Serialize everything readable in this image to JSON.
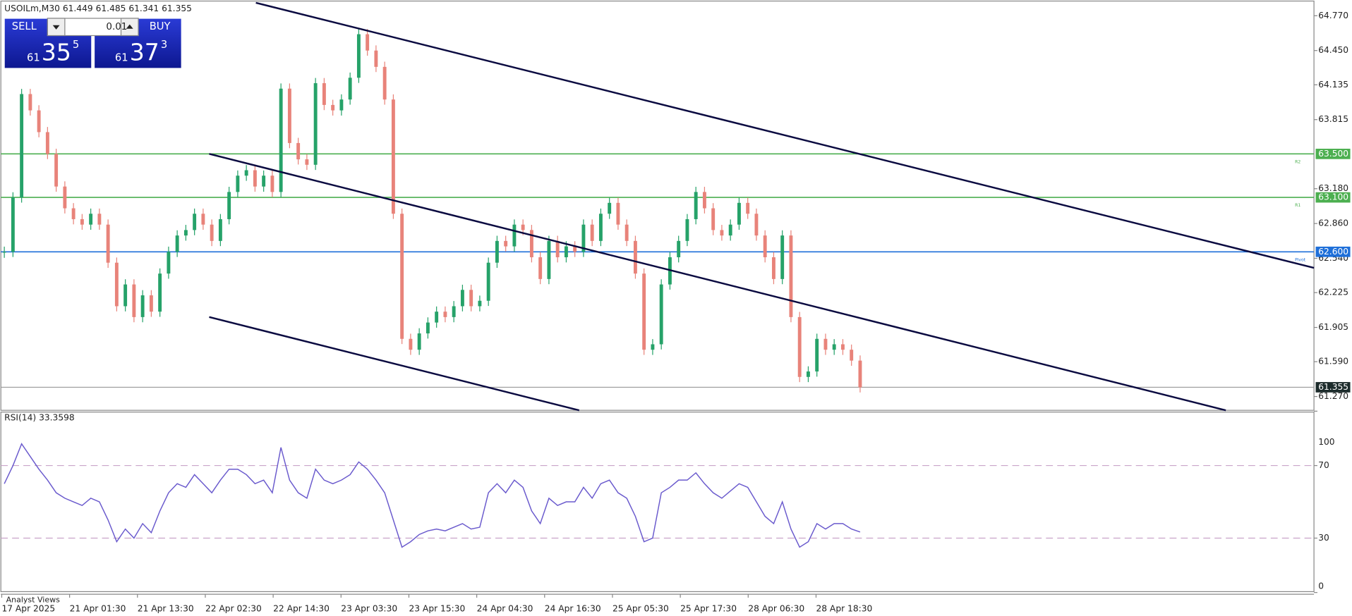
{
  "header": {
    "symbol_line": "USOILm,M30  61.449 61.485 61.341 61.355"
  },
  "trade_panel": {
    "sell": {
      "label": "SELL",
      "price_small": "61",
      "price_big": "35",
      "price_sup": "5"
    },
    "lot": "0.01",
    "buy": {
      "label": "BUY",
      "price_small": "61",
      "price_big": "37",
      "price_sup": "3"
    }
  },
  "price_axis": {
    "ticks": [
      {
        "value": 64.77,
        "label": "64.770"
      },
      {
        "value": 64.45,
        "label": "64.450"
      },
      {
        "value": 64.135,
        "label": "64.135"
      },
      {
        "value": 63.815,
        "label": "63.815"
      },
      {
        "value": 63.18,
        "label": "63.180"
      },
      {
        "value": 62.86,
        "label": "62.860"
      },
      {
        "value": 62.54,
        "label": "62.540"
      },
      {
        "value": 62.225,
        "label": "62.225"
      },
      {
        "value": 61.905,
        "label": "61.905"
      },
      {
        "value": 61.59,
        "label": "61.590"
      },
      {
        "value": 61.27,
        "label": "61.270"
      }
    ]
  },
  "levels": [
    {
      "value": 63.5,
      "label": "63.500",
      "tag": "R2",
      "color": "#4caf50"
    },
    {
      "value": 63.1,
      "label": "63.100",
      "tag": "R1",
      "color": "#4caf50"
    },
    {
      "value": 62.6,
      "label": "62.600",
      "tag": "Pivot",
      "color": "#1e6fd9"
    }
  ],
  "current_price": {
    "value": 61.355,
    "label": "61.355"
  },
  "price_series": {
    "up_color": "#26a269",
    "down_color": "#e8837a",
    "closes": [
      62.6,
      63.1,
      64.05,
      63.9,
      63.7,
      63.5,
      63.2,
      63.0,
      62.9,
      62.85,
      62.95,
      62.85,
      62.5,
      62.1,
      62.3,
      62.0,
      62.2,
      62.05,
      62.4,
      62.6,
      62.75,
      62.8,
      62.95,
      62.85,
      62.7,
      62.9,
      63.15,
      63.3,
      63.35,
      63.2,
      63.3,
      63.15,
      64.1,
      63.6,
      63.45,
      63.4,
      64.15,
      63.95,
      63.9,
      64.0,
      64.2,
      64.6,
      64.45,
      64.3,
      64.0,
      62.95,
      61.8,
      61.7,
      61.85,
      61.95,
      62.05,
      62.0,
      62.1,
      62.25,
      62.1,
      62.15,
      62.5,
      62.7,
      62.65,
      62.85,
      62.8,
      62.55,
      62.35,
      62.7,
      62.55,
      62.65,
      62.6,
      62.85,
      62.7,
      62.95,
      63.05,
      62.85,
      62.7,
      62.4,
      61.7,
      61.75,
      62.3,
      62.55,
      62.7,
      62.9,
      63.15,
      63.0,
      62.8,
      62.75,
      62.85,
      63.05,
      62.95,
      62.75,
      62.55,
      62.35,
      62.75,
      62.0,
      61.45,
      61.5,
      61.8,
      61.7,
      61.75,
      61.7,
      61.6,
      61.355
    ]
  },
  "rsi": {
    "title": "RSI(14) 33.3598",
    "color": "#6a5acd",
    "ticks": [
      100,
      70,
      30,
      0
    ],
    "levels": [
      70,
      30
    ],
    "values": [
      60,
      70,
      82,
      75,
      68,
      62,
      55,
      52,
      50,
      48,
      52,
      50,
      40,
      28,
      35,
      30,
      38,
      33,
      45,
      55,
      60,
      58,
      65,
      60,
      55,
      62,
      68,
      68,
      65,
      60,
      62,
      55,
      80,
      62,
      55,
      52,
      68,
      62,
      60,
      62,
      65,
      72,
      68,
      62,
      55,
      40,
      25,
      28,
      32,
      34,
      35,
      34,
      36,
      38,
      35,
      36,
      55,
      60,
      55,
      62,
      58,
      45,
      38,
      52,
      48,
      50,
      50,
      58,
      52,
      60,
      62,
      55,
      52,
      42,
      28,
      30,
      55,
      58,
      62,
      62,
      66,
      60,
      55,
      52,
      56,
      60,
      58,
      50,
      42,
      38,
      50,
      35,
      25,
      28,
      38,
      35,
      38,
      38,
      35,
      33.3598
    ]
  },
  "time_axis": {
    "labels": [
      "17 Apr 2025",
      "21 Apr 01:30",
      "21 Apr 13:30",
      "22 Apr 02:30",
      "22 Apr 14:30",
      "23 Apr 03:30",
      "23 Apr 15:30",
      "24 Apr 04:30",
      "24 Apr 16:30",
      "25 Apr 05:30",
      "25 Apr 17:30",
      "28 Apr 06:30",
      "28 Apr 18:30"
    ]
  },
  "footer": {
    "tab": "Analyst Views"
  }
}
